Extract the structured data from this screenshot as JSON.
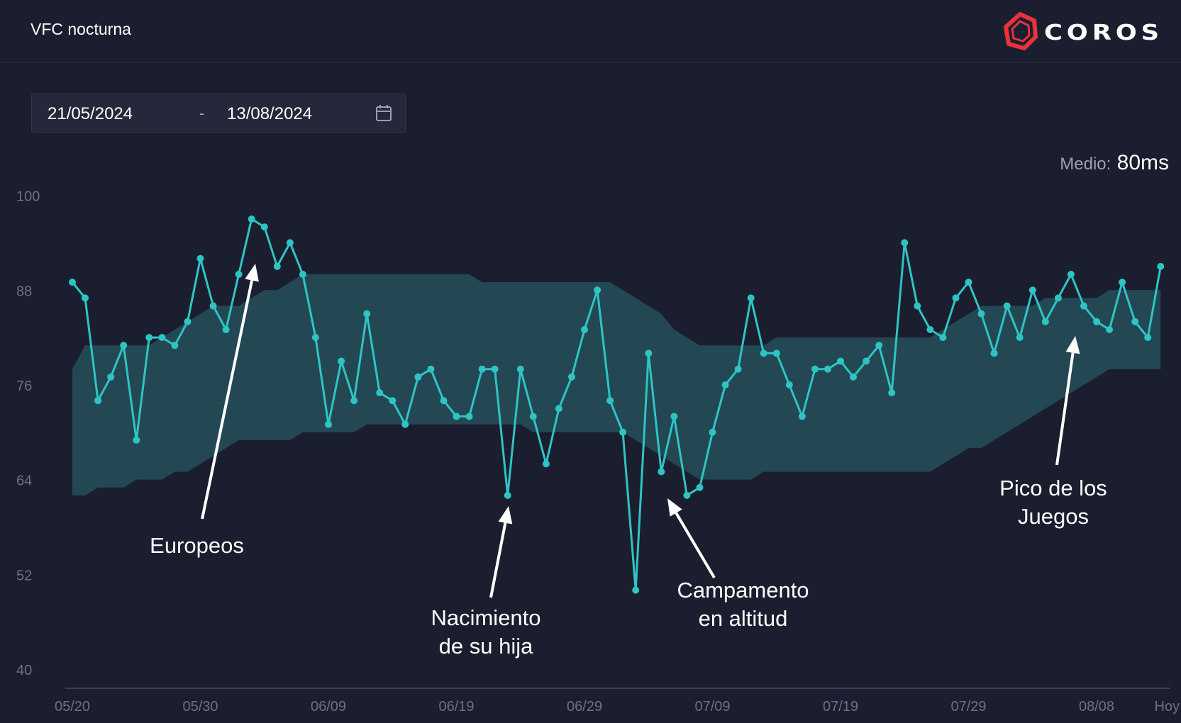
{
  "header": {
    "title": "VFC nocturna",
    "logo_text": "COROS"
  },
  "date_range": {
    "start": "21/05/2024",
    "separator": "-",
    "end": "13/08/2024",
    "icon": "calendar-icon"
  },
  "average": {
    "label": "Medio:",
    "value": "80ms"
  },
  "colors": {
    "line": "#2ec4c4",
    "band": "#24505a",
    "background": "#1b1e2e",
    "accent": "#e8323c"
  },
  "annotations": [
    {
      "id": "europeos",
      "lines": [
        "Europeos"
      ]
    },
    {
      "id": "nacimiento",
      "lines": [
        "Nacimiento",
        "de su hija"
      ]
    },
    {
      "id": "campamento",
      "lines": [
        "Campamento",
        "en altitud"
      ]
    },
    {
      "id": "pico",
      "lines": [
        "Pico de los",
        "Juegos"
      ]
    }
  ],
  "chart_data": {
    "type": "line",
    "title": "VFC nocturna",
    "xlabel": "",
    "ylabel": "",
    "ylim": [
      40,
      100
    ],
    "yticks": [
      40,
      52,
      64,
      76,
      88,
      100
    ],
    "x_tick_labels": [
      "05/20",
      "05/30",
      "06/09",
      "06/19",
      "06/29",
      "07/09",
      "07/19",
      "07/29",
      "08/08",
      "Hoy"
    ],
    "x_tick_days": [
      0,
      10,
      20,
      30,
      40,
      50,
      60,
      70,
      80,
      85.5
    ],
    "grid": false,
    "series": [
      {
        "name": "",
        "x": [
          0,
          1,
          2,
          3,
          4,
          5,
          6,
          7,
          8,
          9,
          10,
          11,
          12,
          13,
          14,
          15,
          16,
          17,
          18,
          19,
          20,
          21,
          22,
          23,
          24,
          25,
          26,
          27,
          28,
          29,
          30,
          31,
          32,
          33,
          34,
          35,
          36,
          37,
          38,
          39,
          40,
          41,
          42,
          43,
          44,
          45,
          46,
          47,
          48,
          49,
          50,
          51,
          52,
          53,
          54,
          55,
          56,
          57,
          58,
          59,
          60,
          61,
          62,
          63,
          64,
          65,
          66,
          67,
          68,
          69,
          70,
          71,
          72,
          73,
          74,
          75,
          76,
          77,
          78,
          79,
          80,
          81,
          82,
          83,
          84,
          85
        ],
        "y": [
          89,
          87,
          74,
          77,
          81,
          69,
          82,
          82,
          81,
          84,
          92,
          86,
          83,
          90,
          97,
          96,
          91,
          94,
          90,
          82,
          71,
          79,
          74,
          85,
          75,
          74,
          71,
          77,
          78,
          74,
          72,
          72,
          78,
          78,
          62,
          78,
          72,
          66,
          73,
          77,
          83,
          88,
          74,
          70,
          50,
          80,
          65,
          72,
          62,
          63,
          70,
          76,
          78,
          87,
          80,
          80,
          76,
          72,
          78,
          78,
          79,
          77,
          79,
          81,
          75,
          94,
          86,
          83,
          82,
          87,
          89,
          85,
          80,
          86,
          82,
          88,
          84,
          87,
          90,
          86,
          84,
          83,
          89,
          84,
          82,
          91
        ]
      }
    ],
    "band": {
      "name": "",
      "x": [
        0,
        1,
        2,
        3,
        4,
        5,
        6,
        7,
        8,
        9,
        10,
        11,
        12,
        13,
        14,
        15,
        16,
        17,
        18,
        19,
        20,
        21,
        22,
        23,
        24,
        25,
        26,
        27,
        28,
        29,
        30,
        31,
        32,
        33,
        34,
        35,
        36,
        37,
        38,
        39,
        40,
        41,
        42,
        43,
        44,
        45,
        46,
        47,
        48,
        49,
        50,
        51,
        52,
        53,
        54,
        55,
        56,
        57,
        58,
        59,
        60,
        61,
        62,
        63,
        64,
        65,
        66,
        67,
        68,
        69,
        70,
        71,
        72,
        73,
        74,
        75,
        76,
        77,
        78,
        79,
        80,
        81,
        82,
        83,
        84,
        85
      ],
      "upper": [
        78,
        81,
        81,
        81,
        81,
        81,
        81,
        82,
        83,
        84,
        85,
        86,
        86,
        86,
        87,
        88,
        88,
        89,
        90,
        90,
        90,
        90,
        90,
        90,
        90,
        90,
        90,
        90,
        90,
        90,
        90,
        90,
        89,
        89,
        89,
        89,
        89,
        89,
        89,
        89,
        89,
        89,
        89,
        88,
        87,
        86,
        85,
        83,
        82,
        81,
        81,
        81,
        81,
        81,
        81,
        82,
        82,
        82,
        82,
        82,
        82,
        82,
        82,
        82,
        82,
        82,
        82,
        82,
        83,
        84,
        85,
        86,
        86,
        86,
        86,
        86,
        87,
        87,
        87,
        87,
        87,
        88,
        88,
        88,
        88,
        88
      ],
      "lower": [
        62,
        62,
        63,
        63,
        63,
        64,
        64,
        64,
        65,
        65,
        66,
        67,
        68,
        69,
        69,
        69,
        69,
        69,
        70,
        70,
        70,
        70,
        70,
        71,
        71,
        71,
        71,
        71,
        71,
        71,
        71,
        71,
        71,
        71,
        71,
        71,
        70,
        70,
        70,
        70,
        70,
        70,
        70,
        70,
        69,
        68,
        67,
        66,
        65,
        64,
        64,
        64,
        64,
        64,
        65,
        65,
        65,
        65,
        65,
        65,
        65,
        65,
        65,
        65,
        65,
        65,
        65,
        65,
        66,
        67,
        68,
        68,
        69,
        70,
        71,
        72,
        73,
        74,
        75,
        76,
        77,
        78,
        78,
        78,
        78,
        78
      ]
    },
    "annotations": [
      "Europeos",
      "Nacimiento de su hija",
      "Campamento en altitud",
      "Pico de los Juegos"
    ]
  }
}
